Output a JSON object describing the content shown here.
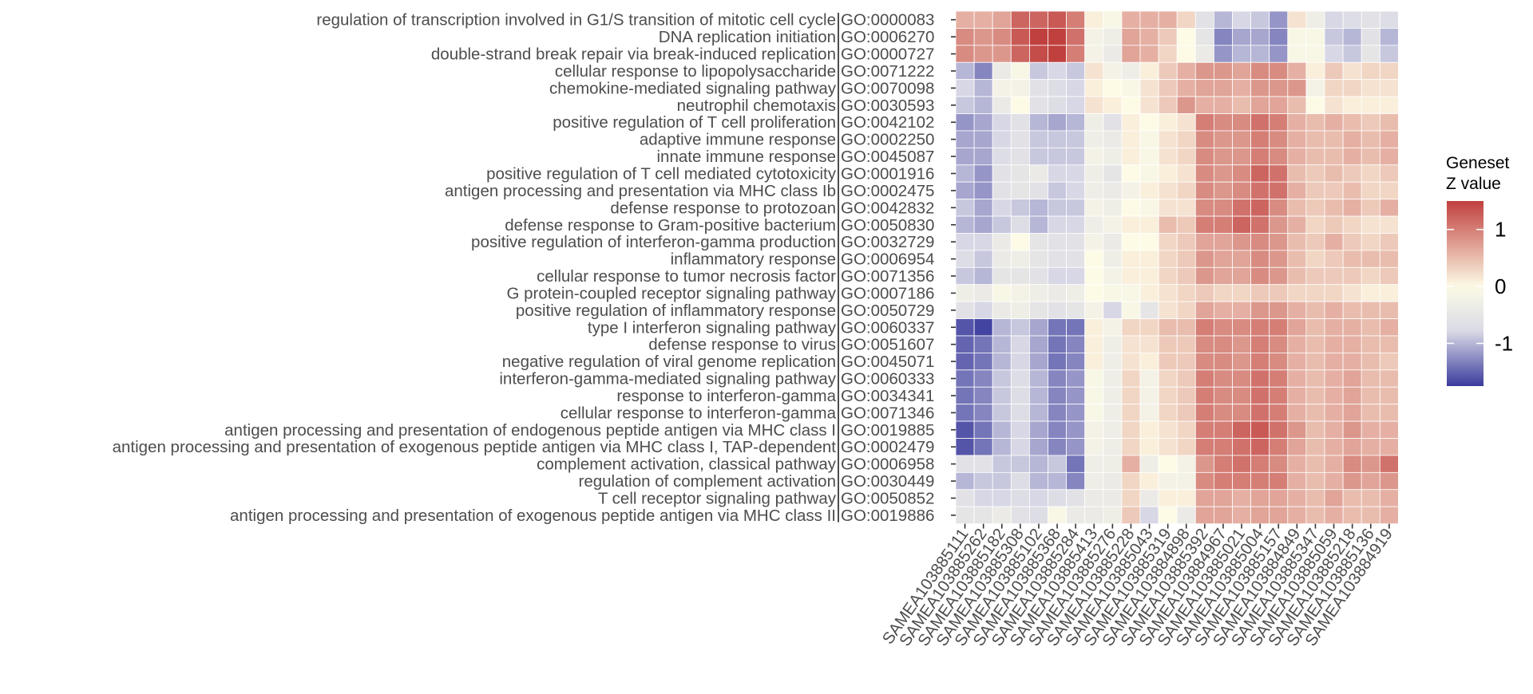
{
  "chart_data": {
    "type": "heatmap",
    "title": "",
    "xlabel": "",
    "ylabel": "",
    "rows": [
      {
        "label": "regulation of transcription involved in G1/S transition of mitotic cell cycle",
        "go": "GO:0000083"
      },
      {
        "label": "DNA replication initiation",
        "go": "GO:0006270"
      },
      {
        "label": "double-strand break repair via break-induced replication",
        "go": "GO:0000727"
      },
      {
        "label": "cellular response to lipopolysaccharide",
        "go": "GO:0071222"
      },
      {
        "label": "chemokine-mediated signaling pathway",
        "go": "GO:0070098"
      },
      {
        "label": "neutrophil chemotaxis",
        "go": "GO:0030593"
      },
      {
        "label": "positive regulation of T cell proliferation",
        "go": "GO:0042102"
      },
      {
        "label": "adaptive immune response",
        "go": "GO:0002250"
      },
      {
        "label": "innate immune response",
        "go": "GO:0045087"
      },
      {
        "label": "positive regulation of T cell mediated cytotoxicity",
        "go": "GO:0001916"
      },
      {
        "label": "antigen processing and presentation via MHC class Ib",
        "go": "GO:0002475"
      },
      {
        "label": "defense response to protozoan",
        "go": "GO:0042832"
      },
      {
        "label": "defense response to Gram-positive bacterium",
        "go": "GO:0050830"
      },
      {
        "label": "positive regulation of interferon-gamma production",
        "go": "GO:0032729"
      },
      {
        "label": "inflammatory response",
        "go": "GO:0006954"
      },
      {
        "label": "cellular response to tumor necrosis factor",
        "go": "GO:0071356"
      },
      {
        "label": "G protein-coupled receptor signaling pathway",
        "go": "GO:0007186"
      },
      {
        "label": "positive regulation of inflammatory response",
        "go": "GO:0050729"
      },
      {
        "label": "type I interferon signaling pathway",
        "go": "GO:0060337"
      },
      {
        "label": "defense response to virus",
        "go": "GO:0051607"
      },
      {
        "label": "negative regulation of viral genome replication",
        "go": "GO:0045071"
      },
      {
        "label": "interferon-gamma-mediated signaling pathway",
        "go": "GO:0060333"
      },
      {
        "label": "response to interferon-gamma",
        "go": "GO:0034341"
      },
      {
        "label": "cellular response to interferon-gamma",
        "go": "GO:0071346"
      },
      {
        "label": "antigen processing and presentation of endogenous peptide antigen via MHC class I",
        "go": "GO:0019885"
      },
      {
        "label": "antigen processing and presentation of exogenous peptide antigen via MHC class I, TAP-dependent",
        "go": "GO:0002479"
      },
      {
        "label": "complement activation, classical pathway",
        "go": "GO:0006958"
      },
      {
        "label": "regulation of complement activation",
        "go": "GO:0030449"
      },
      {
        "label": "T cell receptor signaling pathway",
        "go": "GO:0050852"
      },
      {
        "label": "antigen processing and presentation of exogenous peptide antigen via MHC class II",
        "go": "GO:0019886"
      }
    ],
    "columns": [
      "SAMEA103885111",
      "SAMEA103885262",
      "SAMEA103885182",
      "SAMEA103885308",
      "SAMEA103885102",
      "SAMEA103885368",
      "SAMEA103885284",
      "SAMEA103885413",
      "SAMEA103885276",
      "SAMEA103885228",
      "SAMEA103885043",
      "SAMEA103885319",
      "SAMEA103884898",
      "SAMEA103885392",
      "SAMEA103884967",
      "SAMEA103885021",
      "SAMEA103885004",
      "SAMEA103885157",
      "SAMEA103884849",
      "SAMEA103885347",
      "SAMEA103885059",
      "SAMEA103885218",
      "SAMEA103885136",
      "SAMEA103884919"
    ],
    "values": [
      [
        0.6,
        0.6,
        0.7,
        1.2,
        1.2,
        1.3,
        1.0,
        0.1,
        -0.1,
        0.6,
        0.6,
        0.6,
        0.3,
        -0.6,
        -1.0,
        -0.8,
        -0.9,
        -1.2,
        0.2,
        -0.3,
        -0.8,
        -0.7,
        -0.6,
        -0.7
      ],
      [
        0.9,
        0.8,
        0.9,
        1.3,
        1.5,
        1.6,
        1.1,
        -0.2,
        -0.3,
        0.7,
        0.6,
        0.4,
        0.0,
        -0.5,
        -1.3,
        -1.1,
        -1.1,
        -1.3,
        -0.1,
        -0.1,
        -0.9,
        -1.0,
        -0.6,
        -1.0
      ],
      [
        0.9,
        0.8,
        0.8,
        1.2,
        1.4,
        1.5,
        1.0,
        -0.2,
        -0.4,
        0.7,
        0.6,
        0.3,
        0.0,
        -0.4,
        -1.2,
        -1.0,
        -1.0,
        -1.2,
        -0.1,
        -0.1,
        -0.8,
        -0.9,
        -0.5,
        -0.9
      ],
      [
        -1.0,
        -1.3,
        -0.4,
        -0.1,
        -0.9,
        -0.8,
        -0.9,
        0.2,
        -0.2,
        -0.3,
        0.1,
        0.4,
        0.6,
        0.8,
        0.8,
        0.7,
        0.9,
        0.9,
        0.6,
        0.1,
        0.4,
        0.2,
        0.3,
        0.3
      ],
      [
        -0.8,
        -1.0,
        -0.2,
        -0.2,
        -0.6,
        -0.7,
        -0.8,
        0.1,
        0.0,
        -0.1,
        0.2,
        0.4,
        0.6,
        0.7,
        0.7,
        0.6,
        0.8,
        0.8,
        0.8,
        -0.2,
        0.3,
        0.3,
        0.2,
        0.2
      ],
      [
        -0.9,
        -1.0,
        -0.4,
        0.0,
        -0.6,
        -0.7,
        -0.8,
        0.2,
        0.1,
        0.0,
        0.2,
        0.4,
        0.8,
        0.6,
        0.6,
        0.5,
        0.7,
        0.7,
        0.5,
        0.0,
        0.2,
        0.1,
        0.1,
        0.1
      ],
      [
        -1.2,
        -1.1,
        -0.8,
        -0.6,
        -1.0,
        -1.1,
        -1.0,
        -0.3,
        -0.6,
        0.1,
        0.0,
        0.1,
        0.2,
        1.0,
        0.9,
        0.9,
        1.1,
        1.0,
        0.6,
        0.5,
        0.6,
        0.5,
        0.4,
        0.5
      ],
      [
        -1.1,
        -1.1,
        -0.8,
        -0.6,
        -0.9,
        -0.9,
        -0.9,
        -0.3,
        -0.4,
        0.1,
        -0.1,
        0.2,
        0.3,
        0.9,
        0.8,
        0.8,
        1.0,
        0.9,
        0.6,
        0.5,
        0.5,
        0.6,
        0.5,
        0.6
      ],
      [
        -1.1,
        -1.1,
        -0.7,
        -0.6,
        -0.9,
        -0.9,
        -0.9,
        -0.2,
        -0.3,
        0.1,
        -0.1,
        0.2,
        0.3,
        0.9,
        0.8,
        0.8,
        1.0,
        0.9,
        0.6,
        0.5,
        0.5,
        0.6,
        0.5,
        0.6
      ],
      [
        -1.0,
        -1.2,
        -0.6,
        -0.5,
        -0.4,
        -0.8,
        -0.8,
        -0.3,
        -0.5,
        0.0,
        -0.1,
        0.1,
        0.2,
        0.9,
        0.8,
        0.9,
        1.2,
        1.1,
        0.5,
        0.4,
        0.5,
        0.4,
        0.3,
        0.4
      ],
      [
        -1.1,
        -1.2,
        -0.6,
        -0.5,
        -0.6,
        -0.9,
        -0.8,
        -0.3,
        -0.4,
        -0.2,
        0.1,
        0.2,
        0.3,
        0.9,
        0.8,
        0.9,
        1.1,
        1.1,
        0.6,
        0.4,
        0.4,
        0.5,
        0.3,
        0.3
      ],
      [
        -0.9,
        -1.1,
        -0.8,
        -0.9,
        -1.0,
        -0.9,
        -0.9,
        -0.2,
        -0.3,
        0.0,
        -0.1,
        0.2,
        0.2,
        0.9,
        0.9,
        1.1,
        1.2,
        0.9,
        0.5,
        0.4,
        0.5,
        0.6,
        0.4,
        0.6
      ],
      [
        -1.0,
        -1.1,
        -0.9,
        -0.7,
        -1.0,
        -0.8,
        -0.8,
        -0.3,
        -0.2,
        0.1,
        0.1,
        0.5,
        0.4,
        1.0,
        1.0,
        1.2,
        1.1,
        0.8,
        0.6,
        0.3,
        0.4,
        0.3,
        0.2,
        0.2
      ],
      [
        -0.8,
        -0.8,
        -0.4,
        0.0,
        -0.5,
        -0.6,
        -0.6,
        -0.2,
        -0.4,
        0.0,
        0.0,
        0.3,
        0.4,
        0.7,
        0.7,
        0.8,
        0.9,
        0.8,
        0.5,
        0.4,
        0.6,
        0.4,
        0.3,
        0.4
      ],
      [
        -0.7,
        -0.9,
        -0.4,
        -0.3,
        -0.5,
        -0.6,
        -0.6,
        0.0,
        -0.3,
        0.1,
        0.1,
        0.3,
        0.4,
        0.8,
        0.7,
        0.7,
        0.9,
        0.8,
        0.5,
        0.3,
        0.4,
        0.5,
        0.5,
        0.5
      ],
      [
        -0.9,
        -1.0,
        -0.5,
        -0.5,
        -0.6,
        -0.8,
        -0.8,
        0.0,
        -0.2,
        0.1,
        0.1,
        0.3,
        0.4,
        0.8,
        0.7,
        0.7,
        0.9,
        0.8,
        0.5,
        0.4,
        0.4,
        0.4,
        0.3,
        0.4
      ],
      [
        -0.3,
        -0.4,
        -0.1,
        -0.2,
        -0.3,
        -0.4,
        -0.3,
        0.0,
        -0.1,
        -0.1,
        0.1,
        0.2,
        0.3,
        0.4,
        0.3,
        0.3,
        0.4,
        0.4,
        0.3,
        0.3,
        0.3,
        0.2,
        0.1,
        0.1
      ],
      [
        -0.6,
        -0.8,
        -0.4,
        -0.3,
        -0.5,
        -0.6,
        -0.5,
        -0.2,
        -0.8,
        -0.1,
        -0.5,
        0.2,
        0.3,
        0.7,
        0.6,
        0.6,
        0.8,
        0.8,
        0.6,
        0.5,
        0.6,
        0.5,
        0.5,
        0.5
      ],
      [
        -1.6,
        -1.7,
        -1.0,
        -0.9,
        -1.1,
        -1.4,
        -1.4,
        0.1,
        -0.2,
        0.3,
        0.3,
        0.5,
        0.5,
        1.0,
        0.9,
        0.9,
        1.0,
        1.0,
        0.7,
        0.5,
        0.6,
        0.6,
        0.5,
        0.6
      ],
      [
        -1.5,
        -1.4,
        -1.0,
        -0.8,
        -1.1,
        -1.4,
        -1.3,
        0.1,
        -0.3,
        0.2,
        0.2,
        0.4,
        0.4,
        0.9,
        0.9,
        0.8,
        1.0,
        0.9,
        0.6,
        0.5,
        0.6,
        0.6,
        0.5,
        0.5
      ],
      [
        -1.5,
        -1.4,
        -1.0,
        -0.8,
        -1.1,
        -1.4,
        -1.3,
        0.1,
        -0.3,
        0.2,
        0.1,
        0.4,
        0.4,
        0.9,
        0.9,
        0.8,
        1.0,
        0.9,
        0.6,
        0.5,
        0.6,
        0.6,
        0.5,
        0.4
      ],
      [
        -1.4,
        -1.3,
        -0.9,
        -0.7,
        -1.0,
        -1.3,
        -1.2,
        -0.1,
        -0.3,
        0.3,
        -0.2,
        0.3,
        0.4,
        1.0,
        0.9,
        0.9,
        1.1,
        1.0,
        0.6,
        0.5,
        0.6,
        0.7,
        0.5,
        0.5
      ],
      [
        -1.4,
        -1.3,
        -0.9,
        -0.7,
        -1.0,
        -1.3,
        -1.2,
        -0.1,
        -0.3,
        0.3,
        -0.2,
        0.3,
        0.4,
        1.0,
        0.9,
        0.9,
        1.1,
        1.0,
        0.6,
        0.5,
        0.6,
        0.7,
        0.5,
        0.5
      ],
      [
        -1.4,
        -1.3,
        -0.9,
        -0.7,
        -1.0,
        -1.3,
        -1.2,
        -0.1,
        -0.3,
        0.3,
        -0.2,
        0.3,
        0.4,
        1.0,
        0.9,
        0.9,
        1.1,
        1.0,
        0.6,
        0.5,
        0.6,
        0.7,
        0.5,
        0.5
      ],
      [
        -1.6,
        -1.4,
        -1.0,
        -0.8,
        -1.1,
        -1.3,
        -1.2,
        -0.2,
        -0.3,
        0.3,
        0.1,
        0.2,
        0.3,
        1.0,
        1.0,
        1.2,
        1.3,
        1.1,
        0.8,
        0.5,
        0.6,
        0.8,
        0.6,
        0.6
      ],
      [
        -1.6,
        -1.4,
        -1.0,
        -0.8,
        -1.1,
        -1.3,
        -1.2,
        -0.2,
        -0.3,
        0.3,
        0.1,
        0.2,
        0.3,
        1.0,
        1.0,
        1.1,
        1.2,
        1.0,
        0.7,
        0.5,
        0.6,
        0.7,
        0.6,
        0.6
      ],
      [
        -0.6,
        -0.6,
        -0.9,
        -0.9,
        -1.0,
        -0.9,
        -1.4,
        -0.3,
        -0.3,
        0.6,
        -0.3,
        0.0,
        -0.2,
        0.8,
        1.0,
        1.1,
        1.0,
        0.9,
        0.6,
        0.5,
        0.6,
        0.9,
        0.8,
        1.1
      ],
      [
        -1.0,
        -0.9,
        -0.9,
        -0.7,
        -1.0,
        -1.0,
        -1.3,
        -0.3,
        -0.4,
        0.3,
        0.1,
        -0.2,
        -0.2,
        0.9,
        1.0,
        1.0,
        1.0,
        1.0,
        0.6,
        0.5,
        0.6,
        0.8,
        0.7,
        0.8
      ],
      [
        -0.6,
        -0.8,
        -0.8,
        -0.7,
        -0.8,
        -0.7,
        -0.6,
        -0.4,
        -0.4,
        0.3,
        -0.4,
        0.1,
        0.1,
        0.7,
        0.7,
        0.6,
        0.7,
        0.7,
        0.6,
        0.5,
        0.7,
        0.5,
        0.5,
        0.6
      ],
      [
        -0.5,
        -0.5,
        -0.4,
        -0.6,
        -0.7,
        -0.1,
        -0.4,
        -0.4,
        -0.3,
        0.4,
        -0.8,
        0.0,
        -0.4,
        0.7,
        0.7,
        0.6,
        0.7,
        0.7,
        0.6,
        0.5,
        0.6,
        0.5,
        0.5,
        0.6
      ]
    ],
    "legend": {
      "title_line1": "Geneset",
      "title_line2": "Z value",
      "ticks": [
        1,
        0,
        -1
      ],
      "tick_labels": [
        "1",
        "0",
        "-1"
      ],
      "range": [
        -1.75,
        1.5
      ],
      "placement": "right"
    },
    "colors": {
      "low": "#3b3b9e",
      "mid": "#fdfbe6",
      "high": "#c0403e",
      "mid_low": "#d9d9e6",
      "text": "#4d4d4d",
      "panel": "#ebebeb"
    },
    "grid": true
  }
}
